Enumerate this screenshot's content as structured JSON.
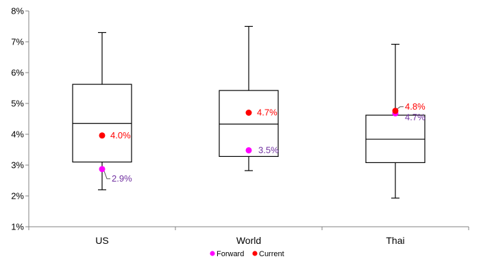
{
  "chart_data": {
    "type": "box",
    "categories": [
      "US",
      "World",
      "Thai"
    ],
    "y_tick_labels": [
      "1%",
      "2%",
      "3%",
      "4%",
      "5%",
      "6%",
      "7%",
      "8%"
    ],
    "ylim": [
      1,
      8
    ],
    "y_unit": "%",
    "grid": false,
    "legend_position": "bottom",
    "boxes": [
      {
        "category": "US",
        "min": 2.2,
        "q1": 3.1,
        "median": 4.35,
        "q3": 5.62,
        "max": 7.3
      },
      {
        "category": "World",
        "min": 2.82,
        "q1": 3.28,
        "median": 4.33,
        "q3": 5.42,
        "max": 7.5
      },
      {
        "category": "Thai",
        "min": 1.93,
        "q1": 3.08,
        "median": 3.84,
        "q3": 4.62,
        "max": 6.92
      }
    ],
    "series": [
      {
        "name": "Forward",
        "color": "#ff00ff",
        "label_color": "#7030a0",
        "values": [
          2.87,
          3.48,
          4.68
        ],
        "labels": [
          "2.9%",
          "3.5%",
          "4.7%"
        ]
      },
      {
        "name": "Current",
        "color": "#ff0000",
        "label_color": "#ff0000",
        "values": [
          3.96,
          4.7,
          4.76
        ],
        "labels": [
          "4.0%",
          "4.7%",
          "4.8%"
        ]
      }
    ]
  }
}
